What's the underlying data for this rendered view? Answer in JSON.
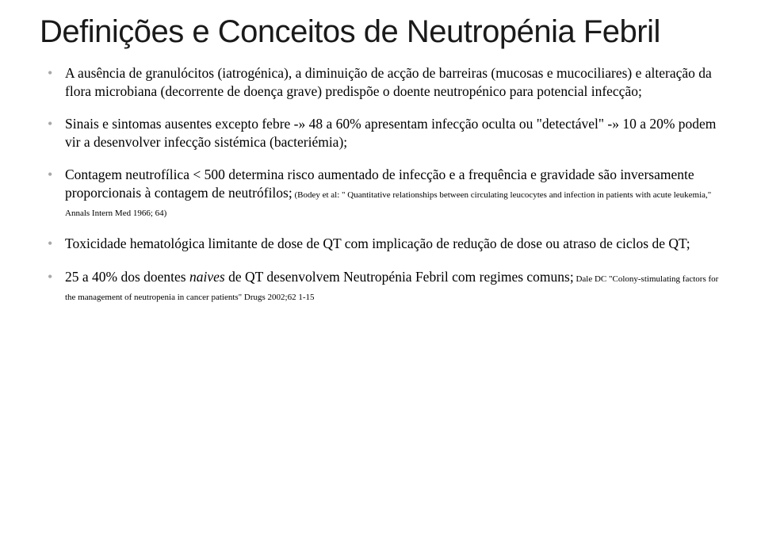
{
  "title": "Definições e Conceitos de Neutropénia Febril",
  "bullets": [
    {
      "text": "A ausência de granulócitos (iatrogénica), a diminuição de acção de barreiras (mucosas e mucociliares) e alteração da flora microbiana (decorrente de doença grave) predispõe o doente neutropénico para potencial infecção;"
    },
    {
      "text": "Sinais e sintomas ausentes excepto febre -» 48 a 60% apresentam infecção oculta ou \"detectável\" -» 10 a 20% podem vir a desenvolver infecção sistémica (bacteriémia);"
    },
    {
      "text": "Contagem neutrofílica < 500 determina risco aumentado de infecção e a frequência e gravidade são inversamente proporcionais à contagem de neutrófilos;",
      "citation": " (Bodey et al: \" Quantitative relationships between circulating leucocytes and infection in patients with acute leukemia,\" Annals Intern Med 1966; 64)"
    },
    {
      "text": "Toxicidade hematológica limitante de dose de QT com implicação de redução de dose ou atraso de ciclos de QT;"
    },
    {
      "pre": "25 a 40% dos doentes ",
      "italic": "naives",
      "post": " de QT desenvolvem Neutropénia Febril com regimes comuns;",
      "citation": " Dale DC \"Colony-stimulating factors for the management of neutropenia in cancer patients\" Drugs 2002;62 1-15"
    }
  ]
}
